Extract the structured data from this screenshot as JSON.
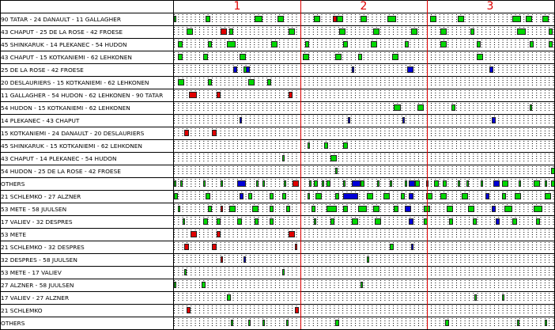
{
  "periods": [
    "1",
    "2",
    "3"
  ],
  "section_top": {
    "rows": [
      {
        "label": "90 TATAR - 24 DANAULT - 11 GALLAGHER",
        "shifts": [
          [
            0,
            1,
            "g"
          ],
          [
            15,
            2,
            "g"
          ],
          [
            38,
            4,
            "g"
          ],
          [
            49,
            3,
            "g"
          ],
          [
            66,
            3,
            "g"
          ],
          [
            75,
            2,
            "r"
          ],
          [
            77,
            3,
            "g"
          ],
          [
            88,
            3,
            "g"
          ],
          [
            101,
            4,
            "g"
          ],
          [
            121,
            3,
            "g"
          ],
          [
            134,
            3,
            "g"
          ],
          [
            160,
            4,
            "g"
          ],
          [
            166,
            3,
            "g"
          ],
          [
            174,
            3,
            "g"
          ]
        ]
      },
      {
        "label": "43 CHAPUT - 25 DE LA ROSE - 42 FROESE",
        "shifts": [
          [
            6,
            3,
            "g"
          ],
          [
            22,
            3,
            "r"
          ],
          [
            26,
            2,
            "g"
          ],
          [
            54,
            3,
            "g"
          ],
          [
            78,
            3,
            "g"
          ],
          [
            94,
            3,
            "g"
          ],
          [
            112,
            3,
            "g"
          ],
          [
            126,
            3,
            "g"
          ],
          [
            140,
            2,
            "g"
          ],
          [
            162,
            4,
            "g"
          ],
          [
            177,
            2,
            "g"
          ]
        ]
      },
      {
        "label": "45 SHINKARUK - 14 PLEKANEC - 54 HUDON",
        "shifts": [
          [
            2,
            2,
            "g"
          ],
          [
            16,
            2,
            "g"
          ],
          [
            25,
            4,
            "g"
          ],
          [
            46,
            3,
            "g"
          ],
          [
            62,
            2,
            "g"
          ],
          [
            80,
            2,
            "g"
          ],
          [
            93,
            3,
            "g"
          ],
          [
            109,
            2,
            "g"
          ],
          [
            126,
            3,
            "g"
          ],
          [
            143,
            2,
            "g"
          ],
          [
            168,
            2,
            "g"
          ],
          [
            177,
            2,
            "g"
          ]
        ]
      },
      {
        "label": "43 CHAPUT - 15 KOTKANIEMI - 62 LEHKONEN",
        "shifts": [
          [
            2,
            2,
            "g"
          ],
          [
            14,
            2,
            "g"
          ],
          [
            31,
            3,
            "g"
          ],
          [
            61,
            3,
            "g"
          ],
          [
            76,
            3,
            "g"
          ],
          [
            87,
            2,
            "g"
          ],
          [
            103,
            3,
            "g"
          ],
          [
            143,
            3,
            "g"
          ]
        ]
      },
      {
        "label": "25 DE LA ROSE - 42 FROESE",
        "shifts": [
          [
            28,
            2,
            "b"
          ],
          [
            33,
            2,
            "g"
          ],
          [
            34,
            2,
            "b"
          ],
          [
            84,
            1,
            "b"
          ],
          [
            110,
            3,
            "b"
          ],
          [
            149,
            2,
            "b"
          ]
        ]
      },
      {
        "label": "20 DESLAURIERS - 15 KOTKANIEMI - 62 LEHKONEN",
        "shifts": [
          [
            2,
            3,
            "g"
          ],
          [
            16,
            2,
            "g"
          ],
          [
            35,
            3,
            "g"
          ],
          [
            44,
            2,
            "g"
          ]
        ]
      },
      {
        "label": "11 GALLAGHER - 54 HUDON - 62 LEHKONEN - 90 TATAR",
        "shifts": [
          [
            7,
            4,
            "r"
          ],
          [
            20,
            2,
            "r"
          ],
          [
            54,
            2,
            "r"
          ]
        ]
      },
      {
        "label": "54 HUDON - 15 KOTKANIEMI - 62 LEHKONEN",
        "shifts": [
          [
            104,
            3,
            "g"
          ],
          [
            115,
            3,
            "g"
          ],
          [
            131,
            2,
            "g"
          ],
          [
            168,
            1,
            "g"
          ]
        ]
      },
      {
        "label": "14 PLEKANEC - 43 CHAPUT",
        "shifts": [
          [
            31,
            1,
            "b"
          ],
          [
            82,
            1,
            "b"
          ],
          [
            108,
            1,
            "b"
          ],
          [
            150,
            2,
            "b"
          ]
        ]
      },
      {
        "label": "15 KOTKANIEMI - 24 DANAULT - 20 DESLAURIERS",
        "shifts": [
          [
            5,
            2,
            "r"
          ],
          [
            18,
            2,
            "r"
          ]
        ]
      },
      {
        "label": "45 SHINKARUK - 15 KOTKANIEMI - 62 LEHKONEN",
        "shifts": [
          [
            63,
            1,
            "g"
          ],
          [
            71,
            2,
            "g"
          ],
          [
            80,
            2,
            "g"
          ]
        ]
      },
      {
        "label": "43 CHAPUT - 14 PLEKANEC - 54 HUDON",
        "shifts": [
          [
            51,
            1,
            "g"
          ],
          [
            74,
            3,
            "g"
          ]
        ]
      },
      {
        "label": "54 HUDON - 25 DE LA ROSE - 42 FROESE",
        "shifts": [
          [
            76,
            1,
            "g"
          ],
          [
            178,
            2,
            "g"
          ]
        ]
      },
      {
        "label": "OTHERS",
        "shifts": [
          [
            0,
            1,
            "g"
          ],
          [
            3,
            1,
            "g"
          ],
          [
            14,
            1,
            "g"
          ],
          [
            22,
            1,
            "g"
          ],
          [
            30,
            4,
            "b"
          ],
          [
            39,
            1,
            "g"
          ],
          [
            42,
            1,
            "g"
          ],
          [
            52,
            1,
            "g"
          ],
          [
            56,
            3,
            "r"
          ],
          [
            64,
            1,
            "g"
          ],
          [
            66,
            2,
            "g"
          ],
          [
            70,
            1,
            "g"
          ],
          [
            72,
            2,
            "g"
          ],
          [
            80,
            1,
            "g"
          ],
          [
            84,
            4,
            "b"
          ],
          [
            88,
            2,
            "g"
          ],
          [
            96,
            1,
            "g"
          ],
          [
            102,
            1,
            "g"
          ],
          [
            109,
            1,
            "g"
          ],
          [
            111,
            3,
            "b"
          ],
          [
            114,
            2,
            "g"
          ],
          [
            119,
            1,
            "g"
          ],
          [
            123,
            2,
            "g"
          ],
          [
            127,
            2,
            "g"
          ],
          [
            134,
            1,
            "g"
          ],
          [
            138,
            1,
            "g"
          ],
          [
            145,
            1,
            "g"
          ],
          [
            151,
            3,
            "b"
          ],
          [
            155,
            3,
            "g"
          ],
          [
            163,
            1,
            "g"
          ],
          [
            170,
            3,
            "g"
          ],
          [
            175,
            1,
            "g"
          ],
          [
            178,
            2,
            "g"
          ]
        ]
      }
    ]
  },
  "section_bottom": {
    "rows": [
      {
        "label": "21 SCHLEMKO - 27 ALZNER",
        "shifts": [
          [
            0,
            2,
            "g"
          ],
          [
            15,
            2,
            "g"
          ],
          [
            31,
            2,
            "b"
          ],
          [
            35,
            2,
            "g"
          ],
          [
            45,
            2,
            "g"
          ],
          [
            51,
            2,
            "g"
          ],
          [
            63,
            1,
            "g"
          ],
          [
            67,
            3,
            "g"
          ],
          [
            76,
            2,
            "g"
          ],
          [
            80,
            7,
            "b"
          ],
          [
            91,
            3,
            "g"
          ],
          [
            99,
            3,
            "g"
          ],
          [
            107,
            2,
            "g"
          ],
          [
            111,
            2,
            "b"
          ],
          [
            119,
            3,
            "g"
          ],
          [
            126,
            3,
            "g"
          ],
          [
            136,
            3,
            "g"
          ],
          [
            147,
            2,
            "b"
          ],
          [
            155,
            2,
            "g"
          ],
          [
            161,
            3,
            "g"
          ],
          [
            175,
            3,
            "g"
          ]
        ]
      },
      {
        "label": "53 METE - 58 JUULSEN",
        "shifts": [
          [
            2,
            1,
            "g"
          ],
          [
            16,
            2,
            "g"
          ],
          [
            22,
            1,
            "r"
          ],
          [
            26,
            3,
            "g"
          ],
          [
            37,
            3,
            "g"
          ],
          [
            45,
            2,
            "g"
          ],
          [
            53,
            2,
            "g"
          ],
          [
            65,
            2,
            "g"
          ],
          [
            72,
            5,
            "g"
          ],
          [
            80,
            2,
            "g"
          ],
          [
            87,
            4,
            "g"
          ],
          [
            94,
            3,
            "g"
          ],
          [
            104,
            2,
            "g"
          ],
          [
            109,
            3,
            "b"
          ],
          [
            118,
            3,
            "g"
          ],
          [
            129,
            3,
            "g"
          ],
          [
            139,
            3,
            "g"
          ],
          [
            150,
            2,
            "b"
          ],
          [
            156,
            4,
            "g"
          ],
          [
            170,
            4,
            "g"
          ]
        ]
      },
      {
        "label": "17 VALIEV - 32 DESPRES",
        "shifts": [
          [
            4,
            1,
            "g"
          ],
          [
            14,
            2,
            "g"
          ],
          [
            20,
            2,
            "g"
          ],
          [
            30,
            2,
            "g"
          ],
          [
            38,
            2,
            "g"
          ],
          [
            45,
            2,
            "g"
          ],
          [
            66,
            1,
            "g"
          ],
          [
            74,
            2,
            "g"
          ],
          [
            84,
            3,
            "g"
          ],
          [
            95,
            3,
            "g"
          ],
          [
            111,
            2,
            "b"
          ],
          [
            118,
            2,
            "g"
          ],
          [
            130,
            2,
            "g"
          ],
          [
            141,
            2,
            "g"
          ],
          [
            152,
            2,
            "b"
          ],
          [
            160,
            2,
            "g"
          ],
          [
            171,
            2,
            "g"
          ]
        ]
      },
      {
        "label": "53 METE",
        "shifts": [
          [
            8,
            3,
            "r"
          ],
          [
            20,
            2,
            "r"
          ],
          [
            54,
            3,
            "r"
          ]
        ]
      },
      {
        "label": "21 SCHLEMKO - 32 DESPRES",
        "shifts": [
          [
            5,
            2,
            "r"
          ],
          [
            18,
            2,
            "r"
          ],
          [
            57,
            1,
            "r"
          ],
          [
            102,
            2,
            "g"
          ],
          [
            112,
            1,
            "b"
          ]
        ]
      },
      {
        "label": "32 DESPRES - 58 JUULSEN",
        "shifts": [
          [
            22,
            1,
            "r"
          ],
          [
            33,
            1,
            "b"
          ],
          [
            91,
            1,
            "g"
          ]
        ]
      },
      {
        "label": "53 METE - 17 VALIEV",
        "shifts": [
          [
            5,
            1,
            "g"
          ],
          [
            51,
            1,
            "g"
          ]
        ]
      },
      {
        "label": "27 ALZNER - 58 JUULSEN",
        "shifts": [
          [
            0,
            1,
            "g"
          ],
          [
            13,
            2,
            "g"
          ],
          [
            88,
            1,
            "g"
          ]
        ]
      },
      {
        "label": "17 VALIEV - 27 ALZNER",
        "shifts": [
          [
            25,
            2,
            "g"
          ],
          [
            142,
            1,
            "g"
          ],
          [
            155,
            1,
            "g"
          ]
        ]
      },
      {
        "label": "21 SCHLEMKO",
        "shifts": [
          [
            6,
            2,
            "r"
          ],
          [
            57,
            2,
            "r"
          ]
        ]
      },
      {
        "label": "OTHERS",
        "shifts": [
          [
            27,
            1,
            "g"
          ],
          [
            35,
            1,
            "g"
          ],
          [
            42,
            1,
            "g"
          ],
          [
            53,
            1,
            "g"
          ],
          [
            76,
            2,
            "g"
          ],
          [
            128,
            2,
            "g"
          ],
          [
            162,
            1,
            "g"
          ],
          [
            175,
            1,
            "g"
          ]
        ]
      }
    ]
  }
}
